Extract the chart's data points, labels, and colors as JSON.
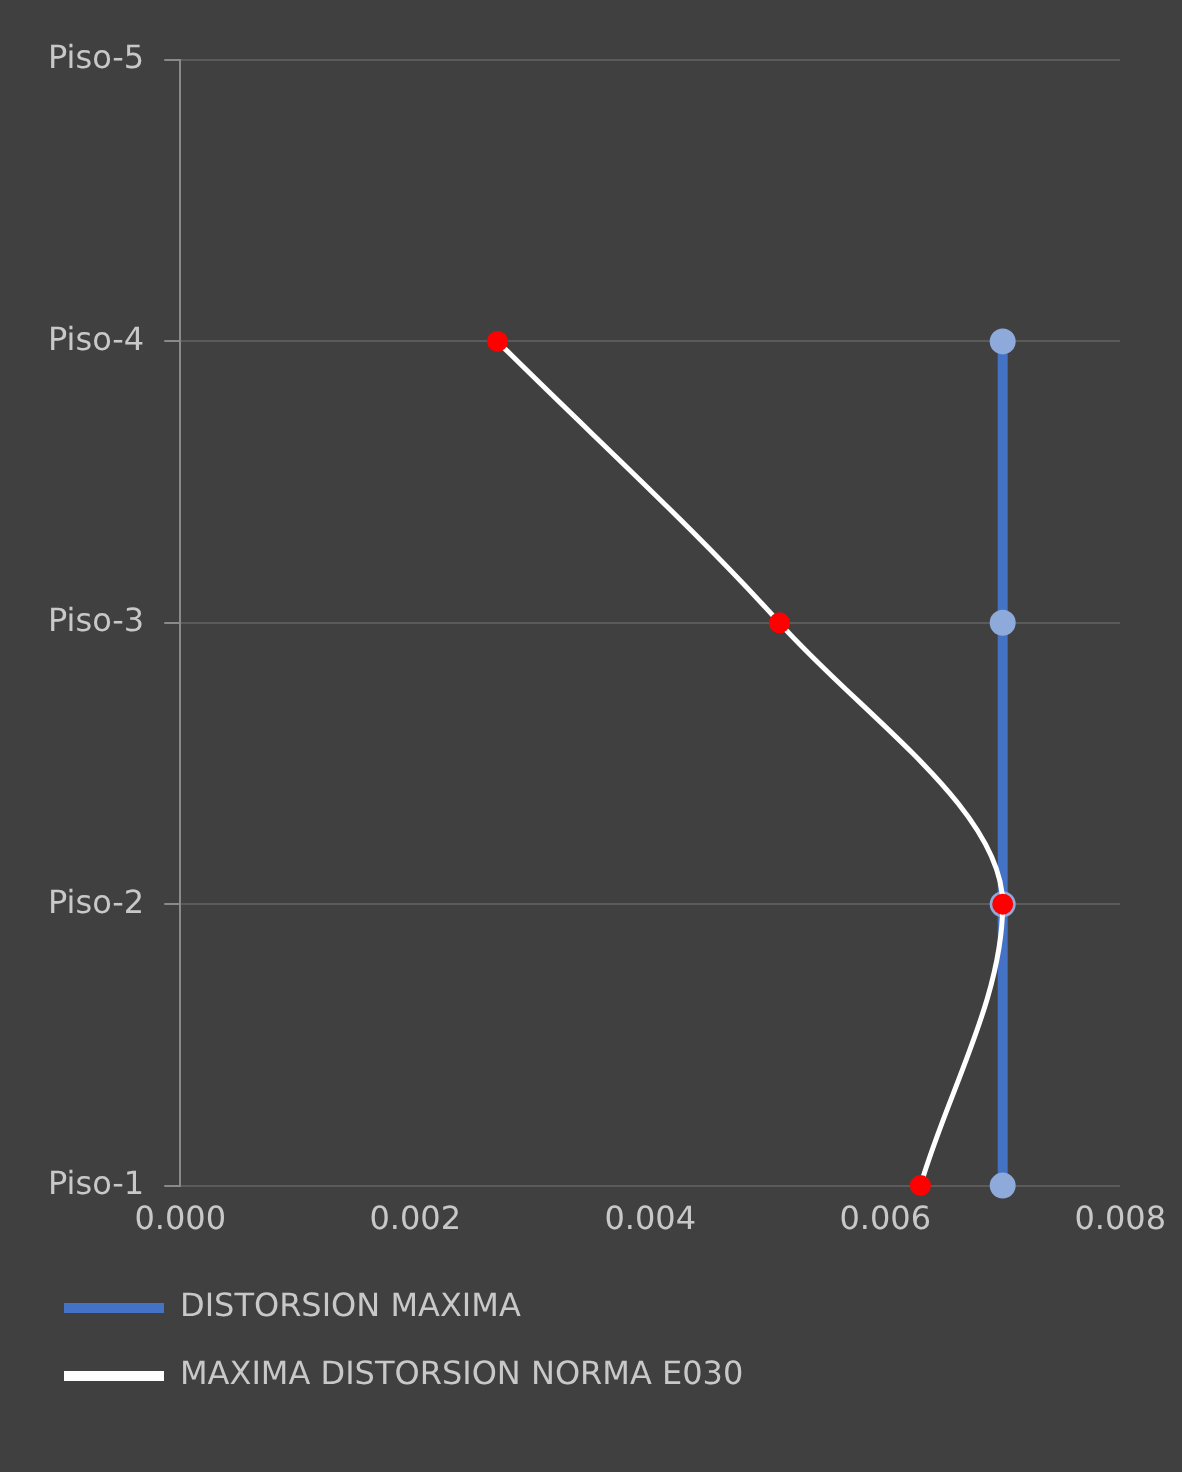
{
  "chart_data": {
    "type": "line",
    "orientation": "horizontal",
    "categories": [
      "Piso-5",
      "Piso-4",
      "Piso-3",
      "Piso-2",
      "Piso-1"
    ],
    "series": [
      {
        "name": "DISTORSION MAXIMA",
        "color": "#4472c4",
        "colors": [
          "#8eaadb",
          "#8eaadb",
          "#8eaadb",
          "#8eaadb",
          "#8eaadb"
        ],
        "values": [
          null,
          0.007,
          0.007,
          0.007,
          0.007
        ]
      },
      {
        "name": "MAXIMA DISTORSION NORMA E030",
        "color": "#ffffff",
        "colors": [
          "#ff0000",
          "#ff0000",
          "#ff0000",
          "#ff0000",
          "#ff0000"
        ],
        "values": [
          null,
          0.0027,
          0.0051,
          0.007,
          0.0063
        ]
      }
    ],
    "xlim": [
      0,
      0.008
    ],
    "xticks": [
      {
        "value": 0,
        "label": "0.000"
      },
      {
        "value": 0.002,
        "label": "0.002"
      },
      {
        "value": 0.004,
        "label": "0.004"
      },
      {
        "value": 0.006,
        "label": "0.006"
      },
      {
        "value": 0.008,
        "label": "0.008"
      }
    ],
    "grid": "y",
    "legend": "bottom",
    "marker": "circle",
    "line_style": "solid"
  }
}
